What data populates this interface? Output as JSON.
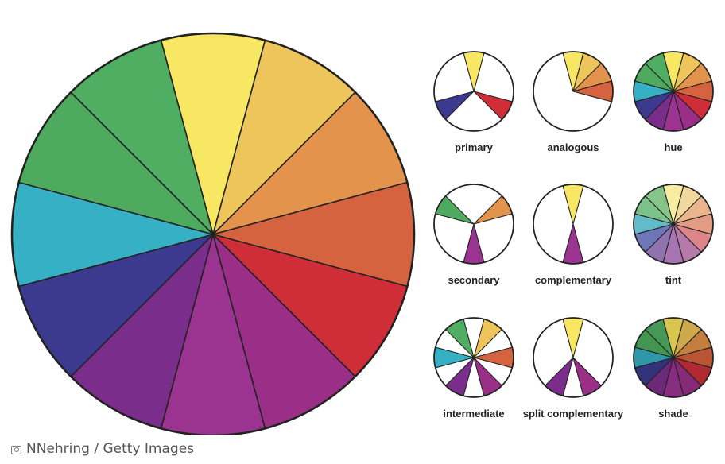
{
  "credit": {
    "text": "NNehring / Getty Images",
    "icon": "camera-icon"
  },
  "palette": {
    "hue": [
      "#f8e763",
      "#eec55b",
      "#e3934b",
      "#d6633f",
      "#cf2e38",
      "#9b2f87",
      "#9b3391",
      "#7b2d8b",
      "#3b3a8f",
      "#35b0c4",
      "#4eaa5f",
      "#4fae61"
    ],
    "tint": [
      "#f6eda0",
      "#f0d79b",
      "#eab48c",
      "#e39c84",
      "#dd8489",
      "#b579aa",
      "#a674b0",
      "#8f73af",
      "#6d77b8",
      "#63bac8",
      "#7dc18b",
      "#86c48a"
    ],
    "shade": [
      "#d9c64f",
      "#cda84c",
      "#c47f3f",
      "#b95535",
      "#b12a32",
      "#872a75",
      "#872c7f",
      "#6c2879",
      "#33337c",
      "#2e98aa",
      "#439552",
      "#459855"
    ]
  },
  "big_wheel": {
    "segments": [
      0,
      1,
      2,
      3,
      4,
      5,
      6,
      7,
      8,
      9,
      10,
      11
    ]
  },
  "small_wheels": [
    {
      "label": "primary",
      "segments": [
        0,
        4,
        8
      ],
      "palette": "hue"
    },
    {
      "label": "analogous",
      "segments": [
        0,
        1,
        2,
        3
      ],
      "palette": "hue"
    },
    {
      "label": "hue",
      "segments": [
        0,
        1,
        2,
        3,
        4,
        5,
        6,
        7,
        8,
        9,
        10,
        11
      ],
      "palette": "hue"
    },
    {
      "label": "secondary",
      "segments": [
        2,
        6,
        10
      ],
      "palette": "hue"
    },
    {
      "label": "complementary",
      "segments": [
        0,
        6
      ],
      "palette": "hue"
    },
    {
      "label": "tint",
      "segments": [
        0,
        1,
        2,
        3,
        4,
        5,
        6,
        7,
        8,
        9,
        10,
        11
      ],
      "palette": "tint"
    },
    {
      "label": "intermediate",
      "segments": [
        1,
        3,
        5,
        7,
        9,
        11
      ],
      "palette": "hue"
    },
    {
      "label": "split complementary",
      "segments": [
        0,
        5,
        7
      ],
      "palette": "hue"
    },
    {
      "label": "shade",
      "segments": [
        0,
        1,
        2,
        3,
        4,
        5,
        6,
        7,
        8,
        9,
        10,
        11
      ],
      "palette": "shade"
    }
  ]
}
